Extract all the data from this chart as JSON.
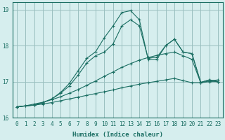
{
  "xlabel": "Humidex (Indice chaleur)",
  "bg_color": "#d6eeee",
  "grid_color": "#9abfbf",
  "line_color": "#1a6e62",
  "xlim": [
    -0.5,
    23.5
  ],
  "ylim": [
    16,
    19.2
  ],
  "yticks": [
    16,
    17,
    18,
    19
  ],
  "xticks": [
    0,
    1,
    2,
    3,
    4,
    5,
    6,
    7,
    8,
    9,
    10,
    11,
    12,
    13,
    14,
    15,
    16,
    17,
    18,
    19,
    20,
    21,
    22,
    23
  ],
  "series1_x": [
    0,
    1,
    2,
    3,
    4,
    5,
    6,
    7,
    8,
    9,
    10,
    11,
    12,
    13,
    14,
    15,
    16,
    17,
    18,
    19,
    20,
    21,
    22,
    23
  ],
  "series1_y": [
    16.3,
    16.33,
    16.35,
    16.38,
    16.42,
    16.47,
    16.52,
    16.57,
    16.62,
    16.67,
    16.72,
    16.77,
    16.83,
    16.88,
    16.93,
    16.97,
    17.01,
    17.05,
    17.09,
    17.03,
    16.97,
    16.97,
    17.0,
    17.0
  ],
  "series2_x": [
    0,
    1,
    2,
    3,
    4,
    5,
    6,
    7,
    8,
    9,
    10,
    11,
    12,
    13,
    14,
    15,
    16,
    17,
    18,
    19,
    20,
    21,
    22,
    23
  ],
  "series2_y": [
    16.3,
    16.33,
    16.38,
    16.43,
    16.5,
    16.58,
    16.68,
    16.78,
    16.9,
    17.02,
    17.15,
    17.27,
    17.4,
    17.5,
    17.6,
    17.67,
    17.73,
    17.78,
    17.82,
    17.72,
    17.62,
    16.97,
    17.02,
    17.05
  ],
  "series3_x": [
    0,
    2,
    3,
    4,
    5,
    6,
    7,
    8,
    9,
    10,
    11,
    12,
    13,
    14,
    15,
    16,
    17,
    18,
    19,
    20,
    21,
    22,
    23
  ],
  "series3_y": [
    16.3,
    16.35,
    16.42,
    16.52,
    16.68,
    16.88,
    17.18,
    17.52,
    17.72,
    17.82,
    18.05,
    18.55,
    18.72,
    18.55,
    17.65,
    17.68,
    18.0,
    18.18,
    17.82,
    17.78,
    16.98,
    17.05,
    17.0
  ],
  "series4_x": [
    0,
    2,
    3,
    4,
    5,
    6,
    7,
    8,
    9,
    10,
    11,
    12,
    13,
    14,
    15,
    16,
    17,
    18,
    19,
    20,
    21,
    22,
    23
  ],
  "series4_y": [
    16.3,
    16.35,
    16.42,
    16.52,
    16.7,
    16.95,
    17.3,
    17.65,
    17.83,
    18.22,
    18.55,
    18.92,
    18.97,
    18.72,
    17.62,
    17.62,
    18.0,
    18.18,
    17.82,
    17.78,
    16.98,
    17.05,
    17.0
  ]
}
